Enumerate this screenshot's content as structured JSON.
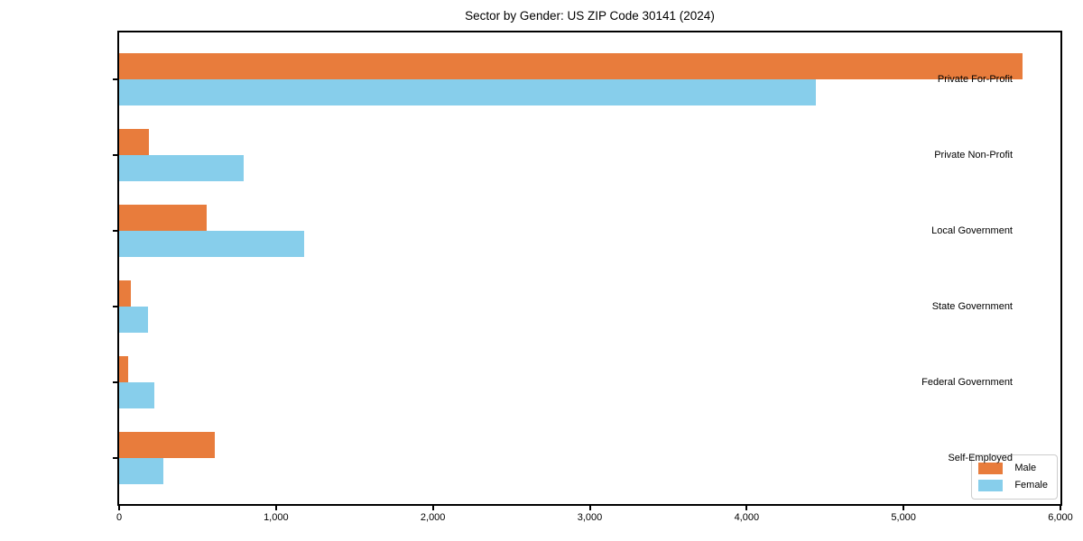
{
  "title": "Sector by Gender: US ZIP Code 30141 (2024)",
  "chart_data": {
    "type": "bar",
    "orientation": "horizontal",
    "title": "Sector by Gender: US ZIP Code 30141 (2024)",
    "xlabel": "",
    "ylabel": "",
    "categories": [
      "Private For-Profit",
      "Private Non-Profit",
      "Local Government",
      "State Government",
      "Federal Government",
      "Self-Employed"
    ],
    "series": [
      {
        "name": "Male",
        "color": "#E87C3C",
        "values": [
          5760,
          190,
          560,
          75,
          55,
          610
        ]
      },
      {
        "name": "Female",
        "color": "#87CEEB",
        "values": [
          4440,
          795,
          1180,
          185,
          225,
          280
        ]
      }
    ],
    "xlim": [
      0,
      6000
    ],
    "xticks": [
      0,
      1000,
      2000,
      3000,
      4000,
      5000,
      6000
    ],
    "xtick_labels": [
      "0",
      "1,000",
      "2,000",
      "3,000",
      "4,000",
      "5,000",
      "6,000"
    ],
    "grid": false,
    "legend_position": "lower right",
    "plot_border_color": "#000000",
    "background_color": "#ffffff"
  }
}
